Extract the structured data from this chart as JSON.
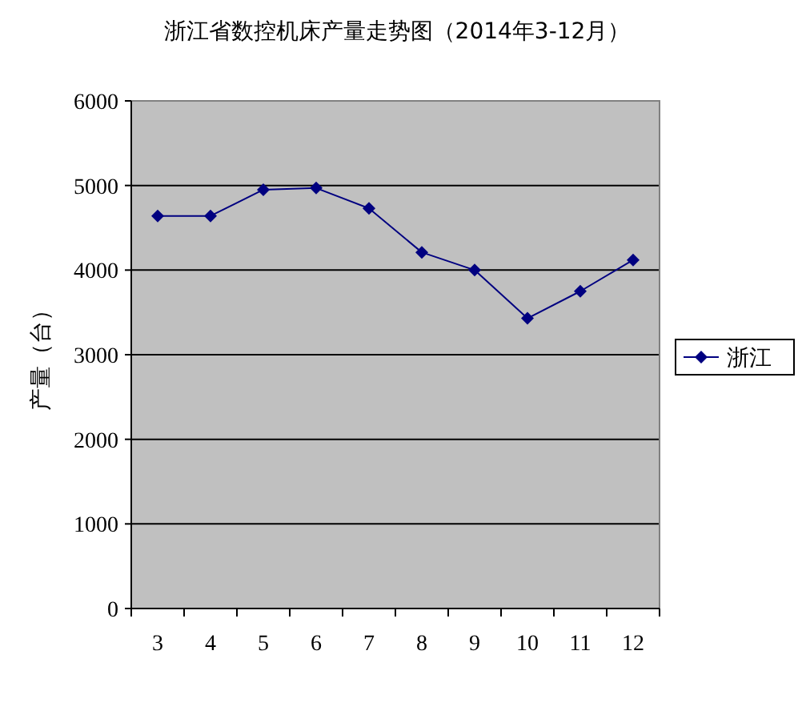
{
  "chart_data": {
    "type": "line",
    "title": "浙江省数控机床产量走势图（2014年3-12月）",
    "ylabel": "产量（台）",
    "categories": [
      "3",
      "4",
      "5",
      "6",
      "7",
      "8",
      "9",
      "10",
      "11",
      "12"
    ],
    "series": [
      {
        "name": "浙江",
        "color": "#000080",
        "values": [
          4640,
          4640,
          4950,
          4970,
          4730,
          4210,
          4000,
          3430,
          3750,
          4120
        ]
      }
    ],
    "ylim": [
      0,
      6000
    ],
    "yticks": [
      0,
      1000,
      2000,
      3000,
      4000,
      5000,
      6000
    ],
    "grid": "y",
    "legend": "right",
    "marker": "diamond",
    "line_style": "solid"
  }
}
